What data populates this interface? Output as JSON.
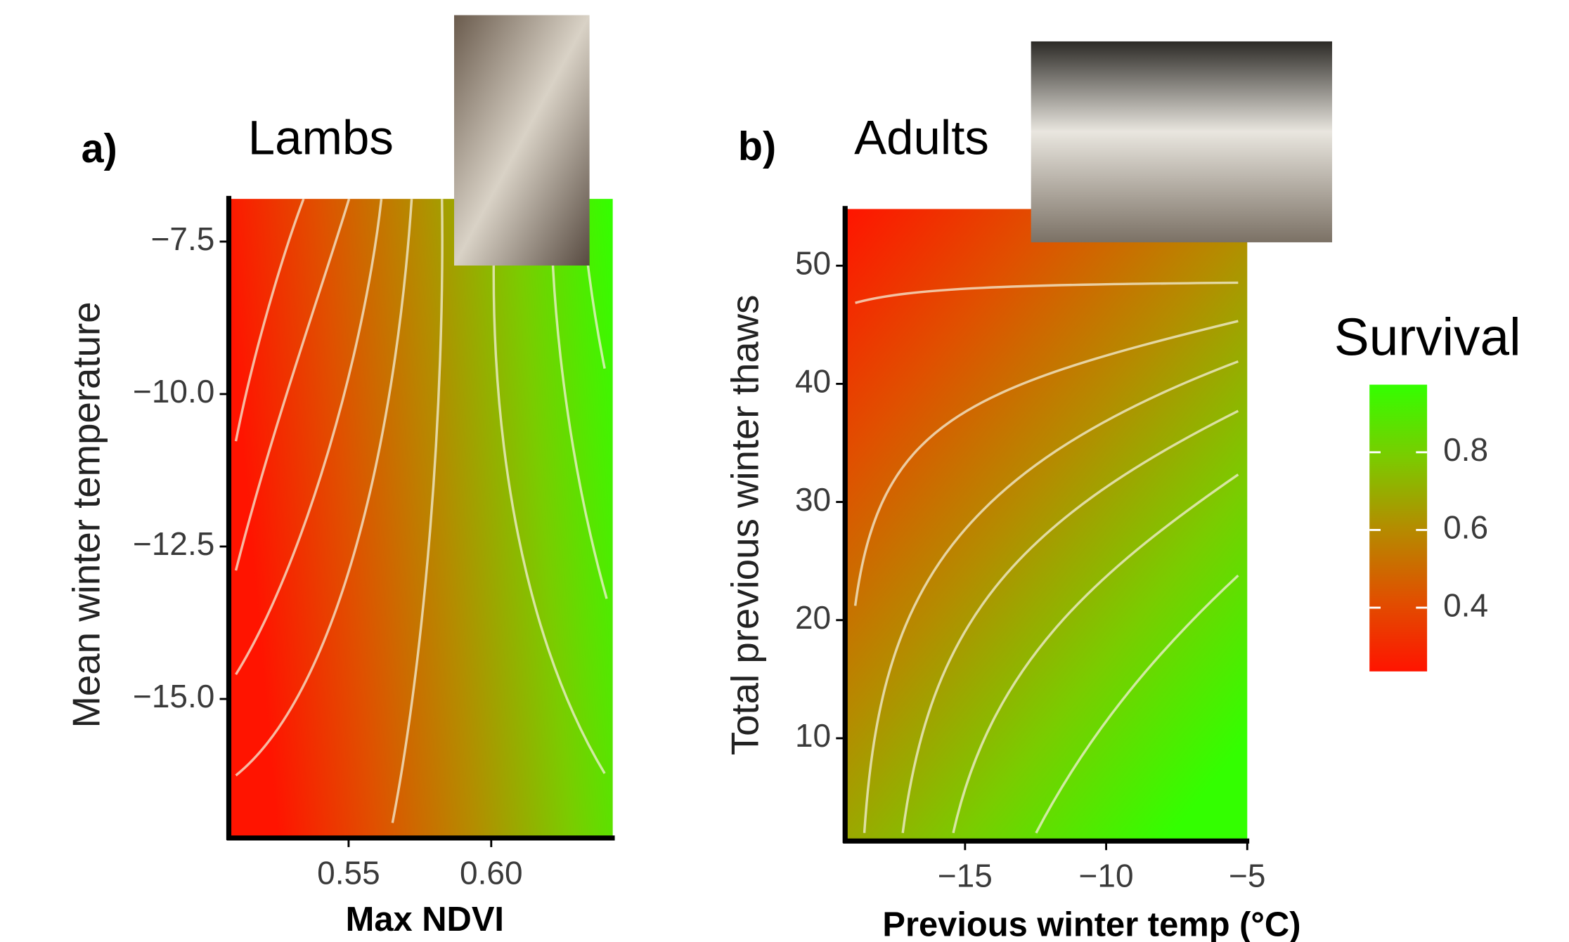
{
  "chart_data": [
    {
      "type": "heatmap",
      "panel_label": "a)",
      "title": "Lambs",
      "xlabel": "Max NDVI",
      "ylabel": "Mean winter temperature",
      "xlim": [
        0.508,
        0.6426
      ],
      "ylim": [
        -17.28,
        -6.8
      ],
      "xticks": [
        0.55,
        {
          "value": 0.6,
          "label": "0.60"
        }
      ],
      "yticks": [
        {
          "value": -7.5,
          "label": "−7.5"
        },
        {
          "value": -10,
          "label": "−10.0"
        },
        {
          "value": -12.5,
          "label": "−12.5"
        },
        {
          "value": -15,
          "label": "−15.0"
        }
      ]
    },
    {
      "type": "heatmap",
      "panel_label": "b)",
      "title": "Adults",
      "xlabel": "Previous winter temp (°C)",
      "ylabel": "Total previous winter thaws",
      "xlim": [
        -19.25,
        -5
      ],
      "ylim": [
        1.3,
        54.8
      ],
      "xticks": [
        {
          "value": -15,
          "label": "−15"
        },
        {
          "value": -10,
          "label": "−10"
        },
        {
          "value": -5,
          "label": "−5"
        }
      ],
      "yticks": [
        10,
        20,
        30,
        40,
        50
      ]
    }
  ],
  "colorbar": {
    "title": "Survival",
    "lim": [
      0.236,
      0.974
    ],
    "ticks": [
      0.4,
      0.6,
      0.8
    ],
    "colors": [
      "#ff1400",
      "#e05000",
      "#b48c00",
      "#7acc00",
      "#33ff00"
    ]
  }
}
